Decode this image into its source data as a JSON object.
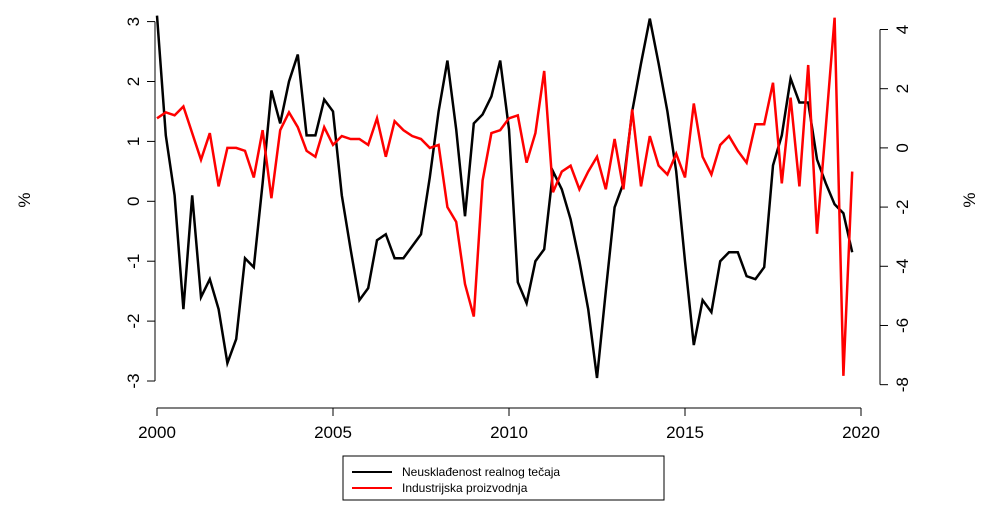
{
  "chart_data": {
    "type": "line",
    "ylabel": "%",
    "y2label": "%",
    "x": [
      2000,
      2000.25,
      2000.5,
      2000.75,
      2001,
      2001.25,
      2001.5,
      2001.75,
      2002,
      2002.25,
      2002.5,
      2002.75,
      2003,
      2003.25,
      2003.5,
      2003.75,
      2004,
      2004.25,
      2004.5,
      2004.75,
      2005,
      2005.25,
      2005.5,
      2005.75,
      2006,
      2006.25,
      2006.5,
      2006.75,
      2007,
      2007.25,
      2007.5,
      2007.75,
      2008,
      2008.25,
      2008.5,
      2008.75,
      2009,
      2009.25,
      2009.5,
      2009.75,
      2010,
      2010.25,
      2010.5,
      2010.75,
      2011,
      2011.25,
      2011.5,
      2011.75,
      2012,
      2012.25,
      2012.5,
      2012.75,
      2013,
      2013.25,
      2013.5,
      2013.75,
      2014,
      2014.25,
      2014.5,
      2014.75,
      2015,
      2015.25,
      2015.5,
      2015.75,
      2016,
      2016.25,
      2016.5,
      2016.75,
      2017,
      2017.25,
      2017.5,
      2017.75,
      2018,
      2018.25,
      2018.5,
      2018.75,
      2019,
      2019.25,
      2019.5,
      2019.75
    ],
    "series": [
      {
        "name": "Neusklađenost realnog tečaja",
        "color": "#000000",
        "axis": "y",
        "values": [
          3.1,
          1.1,
          0.1,
          -1.8,
          0.1,
          -1.6,
          -1.3,
          -1.8,
          -2.7,
          -2.3,
          -0.95,
          -1.1,
          0.3,
          1.85,
          1.3,
          2.0,
          2.45,
          1.1,
          1.1,
          1.7,
          1.5,
          0.1,
          -0.8,
          -1.65,
          -1.45,
          -0.65,
          -0.55,
          -0.95,
          -0.95,
          -0.75,
          -0.55,
          0.4,
          1.5,
          2.35,
          1.2,
          -0.25,
          1.3,
          1.45,
          1.75,
          2.35,
          1.2,
          -1.35,
          -1.7,
          -1.0,
          -0.8,
          0.5,
          0.2,
          -0.3,
          -1.0,
          -1.8,
          -2.95,
          -1.5,
          -0.1,
          0.3,
          1.5,
          2.3,
          3.05,
          2.3,
          1.5,
          0.5,
          -1.0,
          -2.4,
          -1.65,
          -1.85,
          -1.0,
          -0.85,
          -0.85,
          -1.25,
          -1.3,
          -1.1,
          0.6,
          1.1,
          2.05,
          1.65,
          1.65,
          0.7,
          0.3,
          -0.05,
          -0.2,
          -0.85
        ]
      },
      {
        "name": "Industrijska proizvodnja",
        "color": "#ff0000",
        "axis": "y2",
        "values": [
          1.0,
          1.2,
          1.1,
          1.4,
          0.5,
          -0.4,
          0.5,
          -1.3,
          0,
          0,
          -0.1,
          -1.0,
          0.6,
          -1.7,
          0.6,
          1.2,
          0.7,
          -0.1,
          -0.3,
          0.7,
          0.1,
          0.4,
          0.3,
          0.3,
          0.1,
          1.0,
          -0.3,
          0.9,
          0.6,
          0.4,
          0.3,
          0,
          0.1,
          -2.0,
          -2.5,
          -4.6,
          -5.7,
          -1.1,
          0.5,
          0.6,
          1.0,
          1.1,
          -0.5,
          0.5,
          2.6,
          -1.5,
          -0.8,
          -0.6,
          -1.4,
          -0.8,
          -0.3,
          -1.4,
          0.3,
          -1.4,
          1.3,
          -1.3,
          0.4,
          -0.6,
          -0.9,
          -0.2,
          -1.0,
          1.5,
          -0.3,
          -0.9,
          0.1,
          0.4,
          -0.1,
          -0.5,
          0.8,
          0.8,
          2.2,
          -1.2,
          1.7,
          -1.3,
          2.8,
          -2.9,
          0.7,
          4.4,
          -7.7,
          -0.8
        ]
      }
    ],
    "xlim": [
      2000,
      2020
    ],
    "xticks": [
      2000,
      2005,
      2010,
      2015,
      2020
    ],
    "ylim": [
      -3.15,
      3.11
    ],
    "yticks": [
      -3,
      -2,
      -1,
      0,
      1,
      2,
      3
    ],
    "y2lim": [
      -8.18,
      4.49
    ],
    "y2ticks": [
      -8,
      -6,
      -4,
      -2,
      0,
      2,
      4
    ],
    "legend": "bottom"
  }
}
